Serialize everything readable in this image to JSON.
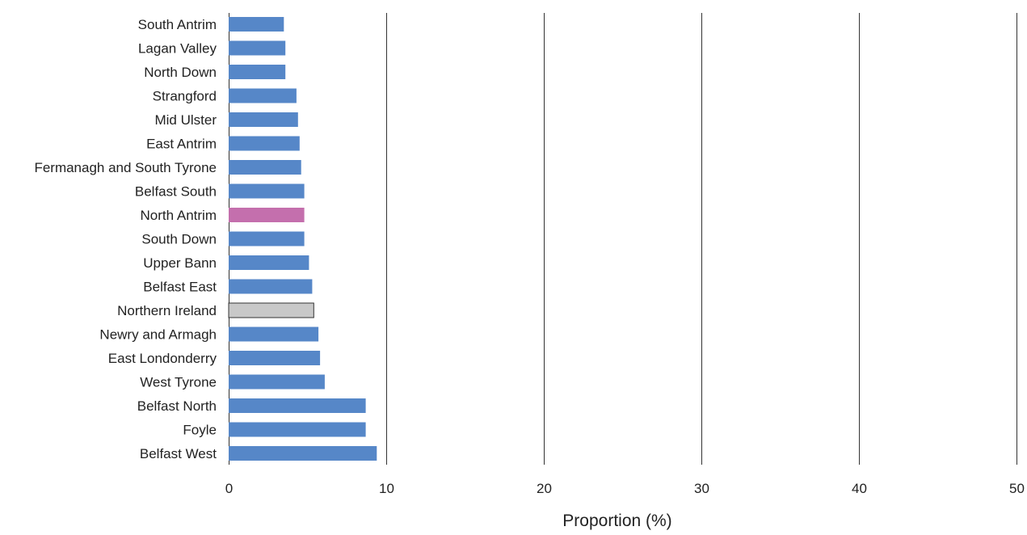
{
  "chart_data": {
    "type": "bar",
    "orientation": "horizontal",
    "categories": [
      "South Antrim",
      "Lagan Valley",
      "North Down",
      "Strangford",
      "Mid Ulster",
      "East Antrim",
      "Fermanagh and South Tyrone",
      "Belfast South",
      "North Antrim",
      "South Down",
      "Upper Bann",
      "Belfast East",
      "Northern Ireland",
      "Newry and Armagh",
      "East Londonderry",
      "West Tyrone",
      "Belfast North",
      "Foyle",
      "Belfast West"
    ],
    "values": [
      3.5,
      3.6,
      3.6,
      4.3,
      4.4,
      4.5,
      4.6,
      4.8,
      4.8,
      4.8,
      5.1,
      5.3,
      5.4,
      5.7,
      5.8,
      6.1,
      8.7,
      8.7,
      9.4
    ],
    "bar_colors": [
      "#5687c8",
      "#5687c8",
      "#5687c8",
      "#5687c8",
      "#5687c8",
      "#5687c8",
      "#5687c8",
      "#5687c8",
      "#c46fad",
      "#5687c8",
      "#5687c8",
      "#5687c8",
      "#c8c8c8",
      "#5687c8",
      "#5687c8",
      "#5687c8",
      "#5687c8",
      "#5687c8",
      "#5687c8"
    ],
    "highlight": {
      "North Antrim": "#c46fad",
      "Northern Ireland": "#c8c8c8"
    },
    "default_color": "#5687c8",
    "xlim": [
      0,
      50
    ],
    "xticks": [
      0,
      10,
      20,
      30,
      40,
      50
    ],
    "xlabel": "Proportion (%)",
    "ylabel": "",
    "title": "",
    "grid": "vertical",
    "legend": "none"
  }
}
